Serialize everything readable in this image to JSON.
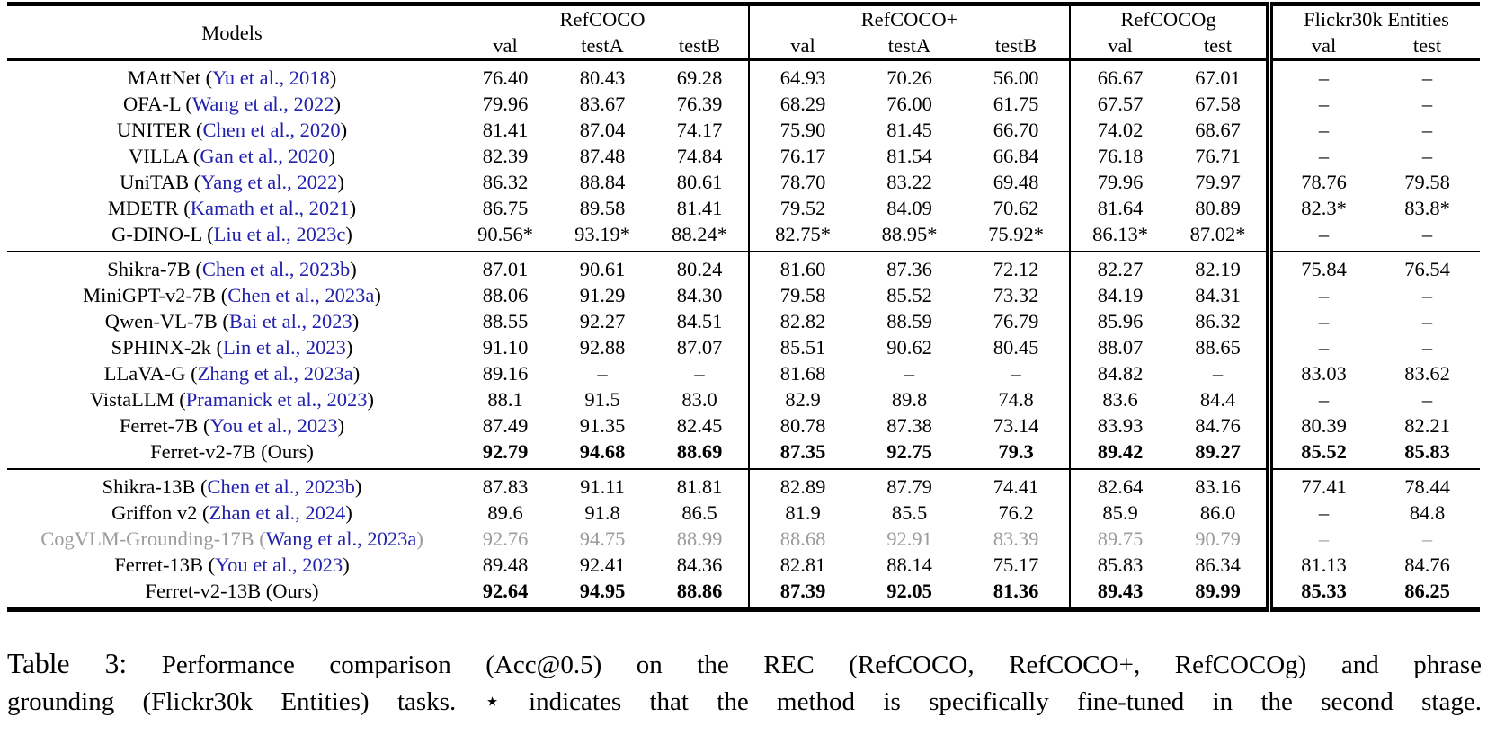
{
  "colors": {
    "citation_blue": "#2121ad",
    "muted_gray": "#9b9b9b"
  },
  "table": {
    "models_header": "Models",
    "col_groups": [
      {
        "label": "RefCOCO",
        "span": 3
      },
      {
        "label": "RefCOCO+",
        "span": 3
      },
      {
        "label": "RefCOCOg",
        "span": 2
      },
      {
        "label": "Flickr30k Entities",
        "span": 2
      }
    ],
    "sub_headers": [
      "val",
      "testA",
      "testB",
      "val",
      "testA",
      "testB",
      "val",
      "test",
      "val",
      "test"
    ],
    "groups": [
      {
        "rows": [
          {
            "pre": "MAttNet (",
            "cite": "Yu et al., 2018",
            "post": ")",
            "values": [
              "76.40",
              "80.43",
              "69.28",
              "64.93",
              "70.26",
              "56.00",
              "66.67",
              "67.01",
              "–",
              "–"
            ]
          },
          {
            "pre": "OFA-L (",
            "cite": "Wang et al., 2022",
            "post": ")",
            "values": [
              "79.96",
              "83.67",
              "76.39",
              "68.29",
              "76.00",
              "61.75",
              "67.57",
              "67.58",
              "–",
              "–"
            ]
          },
          {
            "pre": "UNITER (",
            "cite": "Chen et al., 2020",
            "post": ")",
            "values": [
              "81.41",
              "87.04",
              "74.17",
              "75.90",
              "81.45",
              "66.70",
              "74.02",
              "68.67",
              "–",
              "–"
            ]
          },
          {
            "pre": "VILLA (",
            "cite": "Gan et al., 2020",
            "post": ")",
            "values": [
              "82.39",
              "87.48",
              "74.84",
              "76.17",
              "81.54",
              "66.84",
              "76.18",
              "76.71",
              "–",
              "–"
            ]
          },
          {
            "pre": "UniTAB (",
            "cite": "Yang et al., 2022",
            "post": ")",
            "values": [
              "86.32",
              "88.84",
              "80.61",
              "78.70",
              "83.22",
              "69.48",
              "79.96",
              "79.97",
              "78.76",
              "79.58"
            ]
          },
          {
            "pre": "MDETR (",
            "cite": "Kamath et al., 2021",
            "post": ")",
            "values": [
              "86.75",
              "89.58",
              "81.41",
              "79.52",
              "84.09",
              "70.62",
              "81.64",
              "80.89",
              "82.3*",
              "83.8*"
            ]
          },
          {
            "pre": "G-DINO-L (",
            "cite": "Liu et al., 2023c",
            "post": ")",
            "values": [
              "90.56*",
              "93.19*",
              "88.24*",
              "82.75*",
              "88.95*",
              "75.92*",
              "86.13*",
              "87.02*",
              "–",
              "–"
            ]
          }
        ]
      },
      {
        "rows": [
          {
            "pre": "Shikra-7B (",
            "cite": "Chen et al., 2023b",
            "post": ")",
            "values": [
              "87.01",
              "90.61",
              "80.24",
              "81.60",
              "87.36",
              "72.12",
              "82.27",
              "82.19",
              "75.84",
              "76.54"
            ]
          },
          {
            "pre": "MiniGPT-v2-7B (",
            "cite": "Chen et al., 2023a",
            "post": ")",
            "values": [
              "88.06",
              "91.29",
              "84.30",
              "79.58",
              "85.52",
              "73.32",
              "84.19",
              "84.31",
              "–",
              "–"
            ]
          },
          {
            "pre": "Qwen-VL-7B (",
            "cite": "Bai et al., 2023",
            "post": ")",
            "values": [
              "88.55",
              "92.27",
              "84.51",
              "82.82",
              "88.59",
              "76.79",
              "85.96",
              "86.32",
              "–",
              "–"
            ]
          },
          {
            "pre": "SPHINX-2k (",
            "cite": "Lin et al., 2023",
            "post": ")",
            "values": [
              "91.10",
              "92.88",
              "87.07",
              "85.51",
              "90.62",
              "80.45",
              "88.07",
              "88.65",
              "–",
              "–"
            ]
          },
          {
            "pre": "LLaVA-G (",
            "cite": "Zhang et al., 2023a",
            "post": ")",
            "values": [
              "89.16",
              "–",
              "–",
              "81.68",
              "–",
              "–",
              "84.82",
              "–",
              "83.03",
              "83.62"
            ]
          },
          {
            "pre": "VistaLLM (",
            "cite": "Pramanick et al., 2023",
            "post": ")",
            "values": [
              "88.1",
              "91.5",
              "83.0",
              "82.9",
              "89.8",
              "74.8",
              "83.6",
              "84.4",
              "–",
              "–"
            ]
          },
          {
            "pre": "Ferret-7B (",
            "cite": "You et al., 2023",
            "post": ")",
            "values": [
              "87.49",
              "91.35",
              "82.45",
              "80.78",
              "87.38",
              "73.14",
              "83.93",
              "84.76",
              "80.39",
              "82.21"
            ]
          },
          {
            "pre": "Ferret-v2-7B (Ours)",
            "cite": "",
            "post": "",
            "bold": true,
            "values": [
              "92.79",
              "94.68",
              "88.69",
              "87.35",
              "92.75",
              "79.3",
              "89.42",
              "89.27",
              "85.52",
              "85.83"
            ]
          }
        ]
      },
      {
        "rows": [
          {
            "pre": "Shikra-13B (",
            "cite": "Chen et al., 2023b",
            "post": ")",
            "values": [
              "87.83",
              "91.11",
              "81.81",
              "82.89",
              "87.79",
              "74.41",
              "82.64",
              "83.16",
              "77.41",
              "78.44"
            ]
          },
          {
            "pre": "Griffon v2 (",
            "cite": "Zhan et al., 2024",
            "post": ")",
            "values": [
              "89.6",
              "91.8",
              "86.5",
              "81.9",
              "85.5",
              "76.2",
              "85.9",
              "86.0",
              "–",
              "84.8"
            ]
          },
          {
            "pre": "CogVLM-Grounding-17B (",
            "cite": "Wang et al., 2023a",
            "post": ")",
            "gray": true,
            "values": [
              "92.76",
              "94.75",
              "88.99",
              "88.68",
              "92.91",
              "83.39",
              "89.75",
              "90.79",
              "–",
              "–"
            ]
          },
          {
            "pre": "Ferret-13B (",
            "cite": "You et al., 2023",
            "post": ")",
            "values": [
              "89.48",
              "92.41",
              "84.36",
              "82.81",
              "88.14",
              "75.17",
              "85.83",
              "86.34",
              "81.13",
              "84.76"
            ]
          },
          {
            "pre": "Ferret-v2-13B (Ours)",
            "cite": "",
            "post": "",
            "bold": true,
            "values": [
              "92.64",
              "94.95",
              "88.86",
              "87.39",
              "92.05",
              "81.36",
              "89.43",
              "89.99",
              "85.33",
              "86.25"
            ]
          }
        ]
      }
    ]
  },
  "caption": {
    "label": "Table 3:",
    "line1": "Performance comparison (Acc@0.5) on the REC (RefCOCO, RefCOCO+, RefCOCOg) and phrase",
    "line2": "grounding (Flickr30k Entities) tasks. ⋆ indicates that the method is specifically fine-tuned in the second stage."
  }
}
